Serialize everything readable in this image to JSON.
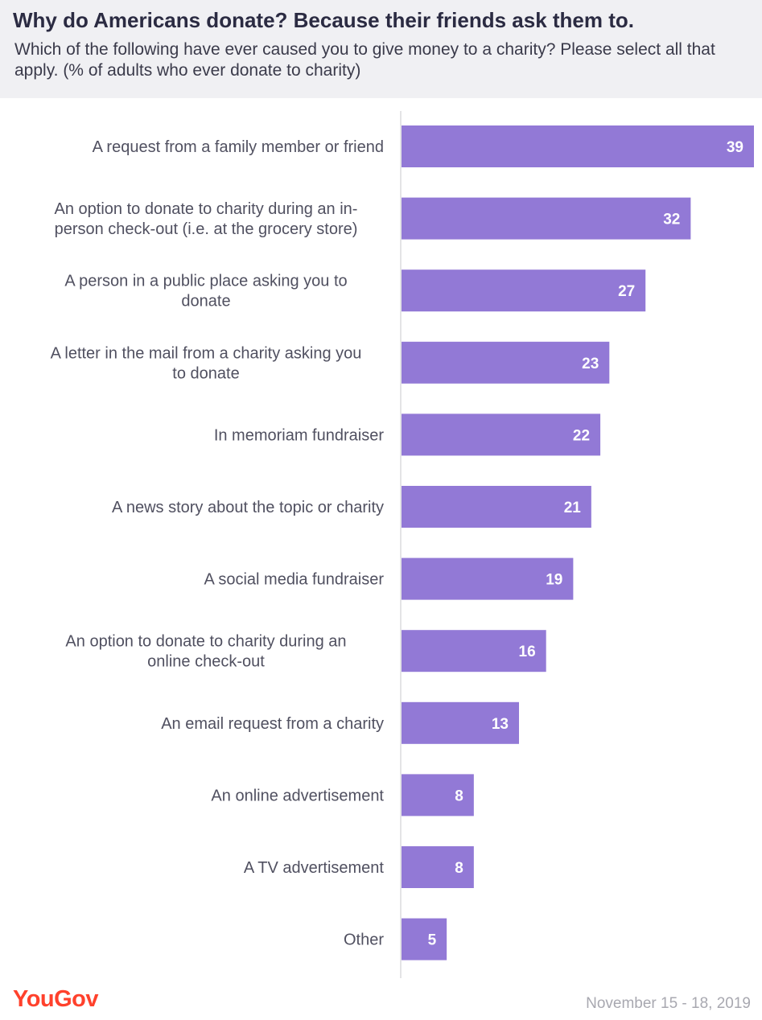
{
  "header": {
    "title": "Why do Americans donate? Because their friends ask them to.",
    "subtitle": "Which of the following have ever caused you to give money to a charity? Please select all that apply. (% of adults who ever donate to charity)"
  },
  "chart_data": {
    "type": "bar",
    "orientation": "horizontal",
    "title": "Why do Americans donate? Because their friends ask them to.",
    "xlabel": "",
    "ylabel": "",
    "xlim": [
      0,
      39
    ],
    "bar_color": "#9279d6",
    "categories": [
      [
        "A request from a family member or friend"
      ],
      [
        "An option to donate to charity during an in-",
        "person check-out (i.e. at the grocery store)"
      ],
      [
        "A person in a public place asking you to",
        "donate"
      ],
      [
        "A letter in the mail from a charity asking you",
        "to donate"
      ],
      [
        "In memoriam fundraiser"
      ],
      [
        "A news story about the topic or charity"
      ],
      [
        "A social media fundraiser"
      ],
      [
        "An option to donate to charity during an",
        "online check-out"
      ],
      [
        "An email request from a charity"
      ],
      [
        "An online advertisement"
      ],
      [
        "A TV advertisement"
      ],
      [
        "Other"
      ]
    ],
    "values": [
      39,
      32,
      27,
      23,
      22,
      21,
      19,
      16,
      13,
      8,
      8,
      5
    ]
  },
  "footer": {
    "logo": "YouGov",
    "date": "November 15 - 18, 2019"
  }
}
